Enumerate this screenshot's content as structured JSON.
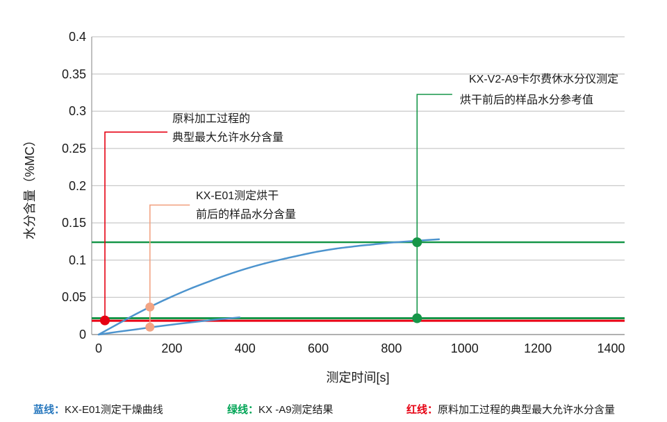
{
  "colors": {
    "blue_curve": "#4d94ce",
    "green_line": "#169648",
    "red_line": "#e60012",
    "orange": "#f2a484",
    "legend_blue": "#2878be",
    "legend_green": "#00a455",
    "legend_red": "#e60012",
    "grid": "#c9c9c9",
    "axis": "#a6a6a6",
    "text": "#1a1a1a"
  },
  "chart_data": {
    "type": "line",
    "title": "",
    "xlabel": "测定时间[s]",
    "ylabel": "水分含量（%MC）",
    "xlim": [
      0,
      1437
    ],
    "ylim": [
      0,
      0.4
    ],
    "grid": true,
    "x_ticks": [
      0,
      200,
      400,
      600,
      800,
      1000,
      1200,
      1400
    ],
    "x_tick_labels": [
      "0",
      "200",
      "400",
      "600",
      "800",
      "1000",
      "1200",
      "1400"
    ],
    "y_ticks": [
      0,
      0.05,
      0.1,
      0.15,
      0.2,
      0.25,
      0.3,
      0.35,
      0.4
    ],
    "y_tick_labels": [
      "0",
      "0.05",
      "0.1",
      "0.15",
      "0.2",
      "0.25",
      "0.3",
      "0.35",
      "0.4"
    ],
    "series": [
      {
        "id": "blue-drying-curve-upper",
        "color_key": "blue_curve",
        "points": [
          [
            0,
            0
          ],
          [
            50,
            0.0135
          ],
          [
            100,
            0.027
          ],
          [
            150,
            0.0395
          ],
          [
            200,
            0.051
          ],
          [
            250,
            0.0615
          ],
          [
            300,
            0.071
          ],
          [
            350,
            0.08
          ],
          [
            400,
            0.088
          ],
          [
            450,
            0.095
          ],
          [
            500,
            0.101
          ],
          [
            550,
            0.1065
          ],
          [
            600,
            0.1115
          ],
          [
            650,
            0.1155
          ],
          [
            700,
            0.1185
          ],
          [
            750,
            0.121
          ],
          [
            800,
            0.1235
          ],
          [
            850,
            0.1253
          ],
          [
            900,
            0.127
          ],
          [
            930,
            0.128
          ]
        ]
      },
      {
        "id": "blue-drying-curve-lower",
        "color_key": "blue_curve",
        "points": [
          [
            0,
            0
          ],
          [
            50,
            0.0035
          ],
          [
            100,
            0.0068
          ],
          [
            140,
            0.0095
          ],
          [
            200,
            0.0133
          ],
          [
            250,
            0.0162
          ],
          [
            300,
            0.019
          ],
          [
            340,
            0.021
          ],
          [
            385,
            0.023
          ]
        ]
      }
    ],
    "reference_lines": [
      {
        "id": "green-reference-line-upper",
        "value": 0.124,
        "color_key": "green_line",
        "width": 2.6
      },
      {
        "id": "green-reference-line-lower",
        "value": 0.0219,
        "color_key": "green_line",
        "width": 3
      },
      {
        "id": "red-max-allowed-line",
        "value": 0.0185,
        "color_key": "red_line",
        "width": 3
      }
    ],
    "markers": [
      {
        "id": "red-point",
        "t": 17,
        "v": 0.019,
        "color_key": "red_line",
        "r": 7
      },
      {
        "id": "orange-point-before",
        "t": 140,
        "v": 0.037,
        "color_key": "orange",
        "r": 6.5
      },
      {
        "id": "orange-point-after",
        "t": 140,
        "v": 0.01,
        "color_key": "orange",
        "r": 6.5
      },
      {
        "id": "green-point-before",
        "t": 870,
        "v": 0.124,
        "color_key": "green_line",
        "r": 7
      },
      {
        "id": "green-point-after",
        "t": 870,
        "v": 0.0219,
        "color_key": "green_line",
        "r": 7
      }
    ],
    "annotations": [
      {
        "id": "annotation-max-allowed",
        "color_key": "red_line",
        "leader": {
          "t": 17,
          "from_v": 0.019,
          "to_v": 0.272,
          "elbow_t": 188
        },
        "lines": [
          {
            "text": "原料加工过程的",
            "x": 248,
            "y": 161
          },
          {
            "text": "典型最大允许水分含量",
            "x": 248,
            "y": 188
          }
        ]
      },
      {
        "id": "annotation-kx-e01",
        "color_key": "orange",
        "leader": {
          "t": 140,
          "from_v": 0.01,
          "to_v": 0.174,
          "elbow_t": 249
        },
        "lines": [
          {
            "text": "KX-E01测定烘干",
            "x": 282,
            "y": 272
          },
          {
            "text": "前后的样品水分含量",
            "x": 282,
            "y": 299
          }
        ]
      },
      {
        "id": "annotation-kx-v2-a9",
        "color_key": "green_line",
        "leader": {
          "t": 870,
          "from_v": 0.0219,
          "to_v": 0.3226,
          "elbow_t": 966
        },
        "lines": [
          {
            "text": "KX-V2-A9卡尔费休水分仪测定",
            "x": 675,
            "y": 104
          },
          {
            "text": "烘干前后的样品水分参考值",
            "x": 662,
            "y": 134
          }
        ]
      }
    ]
  },
  "legend": {
    "items": [
      {
        "prefix": "蓝线：",
        "label": "KX-E01测定干燥曲线",
        "color_key": "legend_blue",
        "x": 48
      },
      {
        "prefix": "绿线：",
        "label": "KX -A9测定结果",
        "color_key": "legend_green",
        "x": 327
      },
      {
        "prefix": "红线：",
        "label": "原料加工过程的典型最大允许水分含量",
        "color_key": "legend_red",
        "x": 585
      }
    ]
  }
}
